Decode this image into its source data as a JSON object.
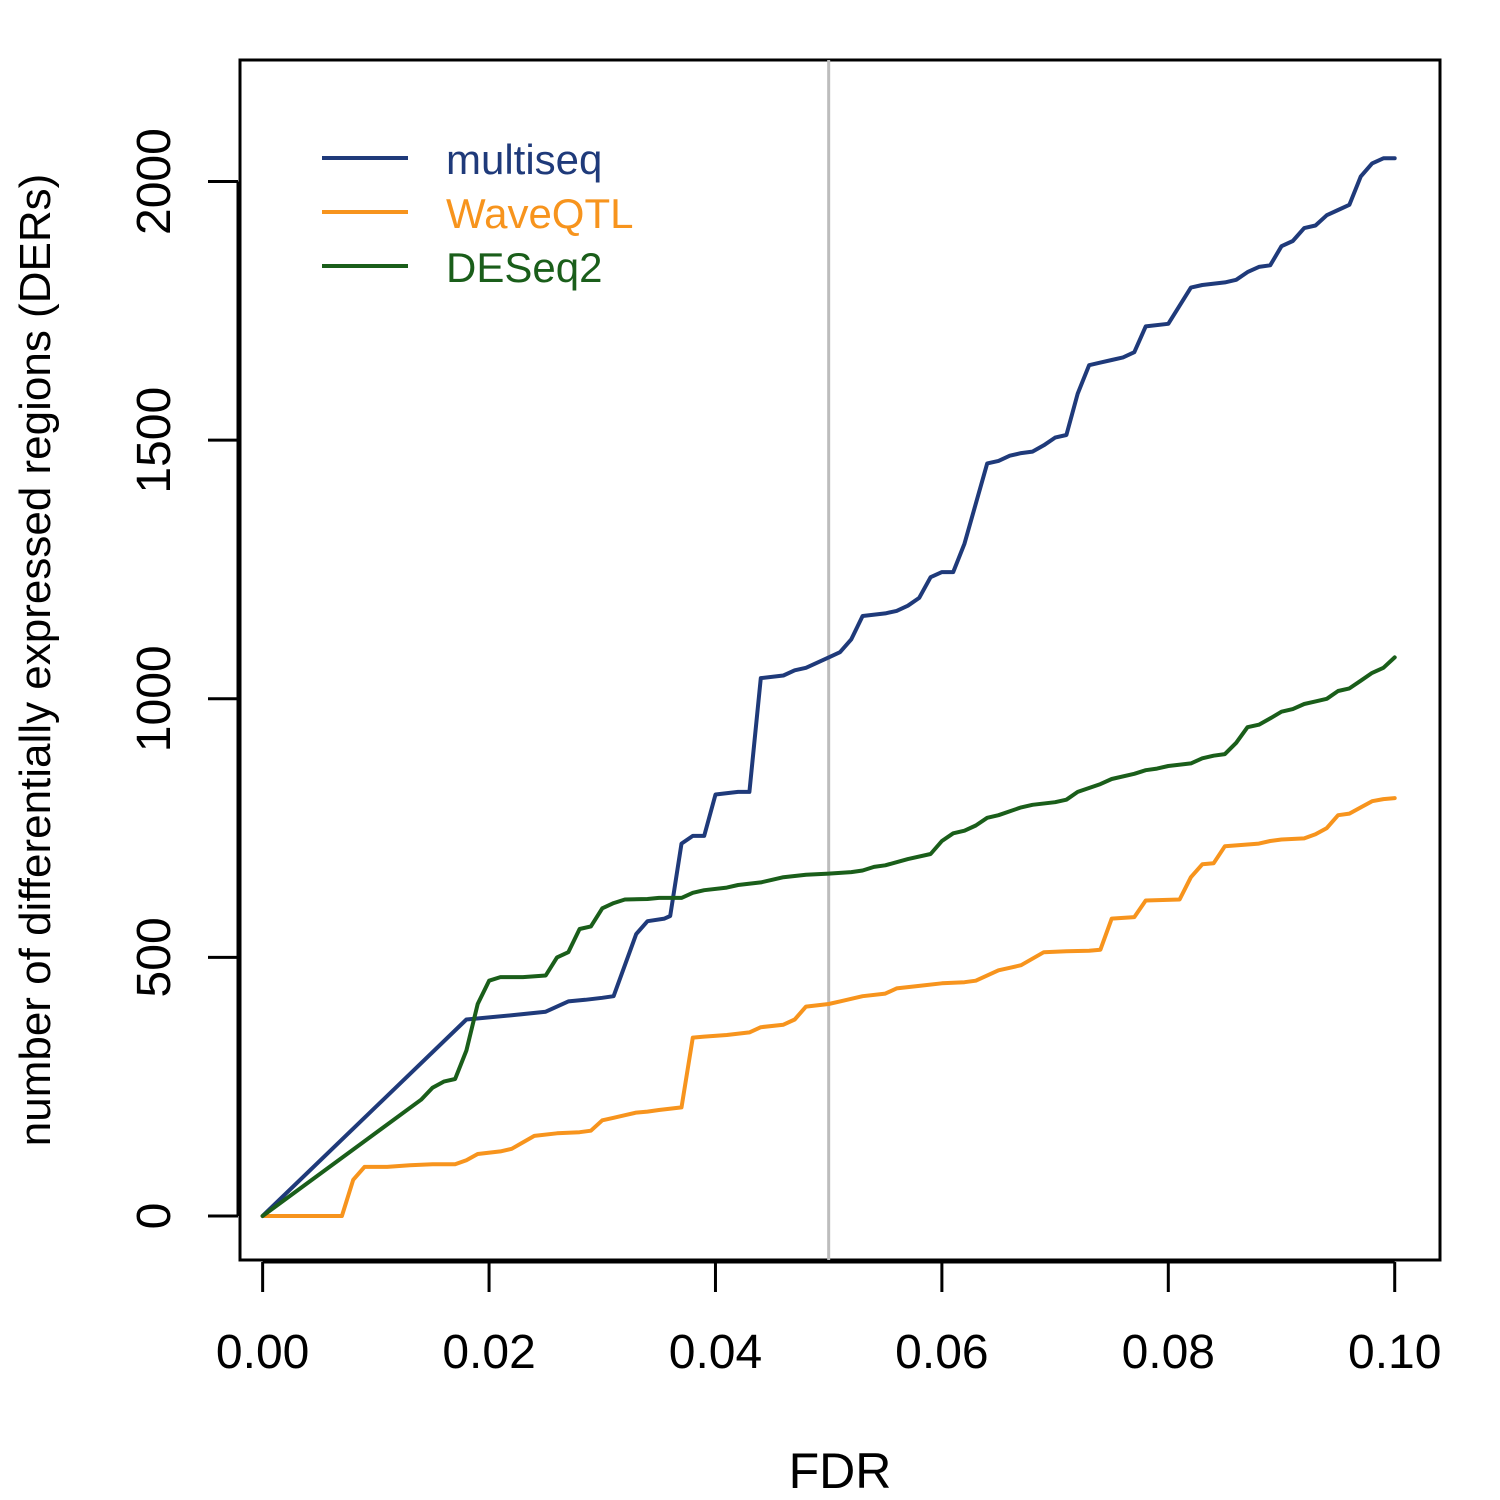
{
  "chart_data": {
    "type": "line",
    "title": "",
    "xlabel": "FDR",
    "ylabel": "number of differentially expressed regions (DERs)",
    "xlim": [
      -0.002,
      0.104
    ],
    "ylim": [
      -85,
      2235
    ],
    "x_ticks": [
      0,
      0.02,
      0.04,
      0.06,
      0.08,
      0.1
    ],
    "x_tick_labels": [
      "0.00",
      "0.02",
      "0.04",
      "0.06",
      "0.08",
      "0.10"
    ],
    "y_ticks": [
      0,
      500,
      1000,
      1500,
      2000
    ],
    "y_tick_labels": [
      "0",
      "500",
      "1000",
      "1500",
      "2000"
    ],
    "reference_line": {
      "x": 0.05,
      "color": "#bdbdbd"
    },
    "legend_position": "top-left",
    "series": [
      {
        "name": "multiseq",
        "color": "#1f3a7a",
        "points": [
          [
            0,
            0
          ],
          [
            0.018,
            380
          ],
          [
            0.022,
            388
          ],
          [
            0.025,
            395
          ],
          [
            0.027,
            415
          ],
          [
            0.0285,
            418
          ],
          [
            0.03,
            422
          ],
          [
            0.031,
            425
          ],
          [
            0.033,
            545
          ],
          [
            0.034,
            570
          ],
          [
            0.0355,
            575
          ],
          [
            0.036,
            580
          ],
          [
            0.037,
            720
          ],
          [
            0.038,
            735
          ],
          [
            0.039,
            735
          ],
          [
            0.04,
            815
          ],
          [
            0.042,
            820
          ],
          [
            0.043,
            820
          ],
          [
            0.044,
            1040
          ],
          [
            0.046,
            1045
          ],
          [
            0.047,
            1055
          ],
          [
            0.048,
            1060
          ],
          [
            0.05,
            1080
          ],
          [
            0.051,
            1090
          ],
          [
            0.052,
            1115
          ],
          [
            0.053,
            1160
          ],
          [
            0.055,
            1165
          ],
          [
            0.056,
            1170
          ],
          [
            0.057,
            1180
          ],
          [
            0.058,
            1195
          ],
          [
            0.059,
            1235
          ],
          [
            0.06,
            1245
          ],
          [
            0.061,
            1245
          ],
          [
            0.062,
            1300
          ],
          [
            0.064,
            1455
          ],
          [
            0.065,
            1460
          ],
          [
            0.066,
            1470
          ],
          [
            0.067,
            1475
          ],
          [
            0.068,
            1478
          ],
          [
            0.069,
            1490
          ],
          [
            0.07,
            1505
          ],
          [
            0.071,
            1510
          ],
          [
            0.072,
            1590
          ],
          [
            0.073,
            1645
          ],
          [
            0.074,
            1650
          ],
          [
            0.075,
            1655
          ],
          [
            0.076,
            1660
          ],
          [
            0.077,
            1670
          ],
          [
            0.078,
            1720
          ],
          [
            0.08,
            1725
          ],
          [
            0.081,
            1760
          ],
          [
            0.082,
            1795
          ],
          [
            0.083,
            1800
          ],
          [
            0.085,
            1805
          ],
          [
            0.086,
            1810
          ],
          [
            0.087,
            1825
          ],
          [
            0.088,
            1835
          ],
          [
            0.089,
            1838
          ],
          [
            0.09,
            1875
          ],
          [
            0.091,
            1885
          ],
          [
            0.092,
            1910
          ],
          [
            0.093,
            1915
          ],
          [
            0.094,
            1935
          ],
          [
            0.095,
            1945
          ],
          [
            0.096,
            1955
          ],
          [
            0.097,
            2010
          ],
          [
            0.098,
            2035
          ],
          [
            0.099,
            2045
          ],
          [
            0.1,
            2045
          ]
        ]
      },
      {
        "name": "WaveQTL",
        "color": "#f7941d",
        "points": [
          [
            0,
            0
          ],
          [
            0.007,
            0
          ],
          [
            0.008,
            70
          ],
          [
            0.009,
            95
          ],
          [
            0.011,
            95
          ],
          [
            0.013,
            98
          ],
          [
            0.015,
            100
          ],
          [
            0.017,
            100
          ],
          [
            0.018,
            108
          ],
          [
            0.019,
            120
          ],
          [
            0.021,
            125
          ],
          [
            0.022,
            130
          ],
          [
            0.024,
            155
          ],
          [
            0.026,
            160
          ],
          [
            0.028,
            162
          ],
          [
            0.029,
            165
          ],
          [
            0.03,
            185
          ],
          [
            0.031,
            190
          ],
          [
            0.032,
            195
          ],
          [
            0.033,
            200
          ],
          [
            0.034,
            202
          ],
          [
            0.035,
            205
          ],
          [
            0.037,
            210
          ],
          [
            0.038,
            345
          ],
          [
            0.039,
            347
          ],
          [
            0.041,
            350
          ],
          [
            0.043,
            355
          ],
          [
            0.044,
            365
          ],
          [
            0.046,
            370
          ],
          [
            0.047,
            380
          ],
          [
            0.048,
            405
          ],
          [
            0.05,
            410
          ],
          [
            0.051,
            415
          ],
          [
            0.053,
            425
          ],
          [
            0.055,
            430
          ],
          [
            0.056,
            440
          ],
          [
            0.058,
            445
          ],
          [
            0.06,
            450
          ],
          [
            0.062,
            452
          ],
          [
            0.063,
            455
          ],
          [
            0.065,
            475
          ],
          [
            0.066,
            480
          ],
          [
            0.067,
            485
          ],
          [
            0.069,
            510
          ],
          [
            0.071,
            512
          ],
          [
            0.073,
            513
          ],
          [
            0.074,
            515
          ],
          [
            0.075,
            575
          ],
          [
            0.077,
            578
          ],
          [
            0.078,
            610
          ],
          [
            0.081,
            612
          ],
          [
            0.082,
            655
          ],
          [
            0.083,
            680
          ],
          [
            0.084,
            682
          ],
          [
            0.085,
            715
          ],
          [
            0.088,
            720
          ],
          [
            0.089,
            725
          ],
          [
            0.09,
            728
          ],
          [
            0.092,
            730
          ],
          [
            0.093,
            738
          ],
          [
            0.094,
            750
          ],
          [
            0.095,
            775
          ],
          [
            0.096,
            778
          ],
          [
            0.097,
            790
          ],
          [
            0.098,
            802
          ],
          [
            0.099,
            806
          ],
          [
            0.1,
            808
          ]
        ]
      },
      {
        "name": "DESeq2",
        "color": "#1a5e1a",
        "points": [
          [
            0,
            0
          ],
          [
            0.014,
            225
          ],
          [
            0.015,
            248
          ],
          [
            0.016,
            260
          ],
          [
            0.017,
            265
          ],
          [
            0.018,
            320
          ],
          [
            0.019,
            410
          ],
          [
            0.02,
            455
          ],
          [
            0.021,
            462
          ],
          [
            0.023,
            462
          ],
          [
            0.025,
            465
          ],
          [
            0.026,
            500
          ],
          [
            0.027,
            510
          ],
          [
            0.028,
            555
          ],
          [
            0.029,
            560
          ],
          [
            0.03,
            595
          ],
          [
            0.031,
            605
          ],
          [
            0.032,
            612
          ],
          [
            0.034,
            613
          ],
          [
            0.035,
            615
          ],
          [
            0.037,
            615
          ],
          [
            0.038,
            625
          ],
          [
            0.039,
            630
          ],
          [
            0.041,
            635
          ],
          [
            0.042,
            640
          ],
          [
            0.044,
            645
          ],
          [
            0.045,
            650
          ],
          [
            0.046,
            655
          ],
          [
            0.048,
            660
          ],
          [
            0.05,
            662
          ],
          [
            0.052,
            665
          ],
          [
            0.053,
            668
          ],
          [
            0.054,
            675
          ],
          [
            0.055,
            678
          ],
          [
            0.057,
            690
          ],
          [
            0.059,
            700
          ],
          [
            0.06,
            725
          ],
          [
            0.061,
            740
          ],
          [
            0.062,
            745
          ],
          [
            0.063,
            755
          ],
          [
            0.064,
            770
          ],
          [
            0.065,
            775
          ],
          [
            0.067,
            790
          ],
          [
            0.068,
            795
          ],
          [
            0.07,
            800
          ],
          [
            0.071,
            805
          ],
          [
            0.072,
            820
          ],
          [
            0.074,
            835
          ],
          [
            0.075,
            845
          ],
          [
            0.077,
            855
          ],
          [
            0.078,
            862
          ],
          [
            0.079,
            865
          ],
          [
            0.08,
            870
          ],
          [
            0.082,
            875
          ],
          [
            0.083,
            885
          ],
          [
            0.084,
            890
          ],
          [
            0.085,
            893
          ],
          [
            0.086,
            915
          ],
          [
            0.087,
            945
          ],
          [
            0.088,
            950
          ],
          [
            0.089,
            962
          ],
          [
            0.09,
            975
          ],
          [
            0.091,
            980
          ],
          [
            0.092,
            990
          ],
          [
            0.093,
            995
          ],
          [
            0.094,
            1000
          ],
          [
            0.095,
            1015
          ],
          [
            0.096,
            1020
          ],
          [
            0.097,
            1035
          ],
          [
            0.098,
            1050
          ],
          [
            0.099,
            1060
          ],
          [
            0.1,
            1080
          ]
        ]
      }
    ]
  }
}
